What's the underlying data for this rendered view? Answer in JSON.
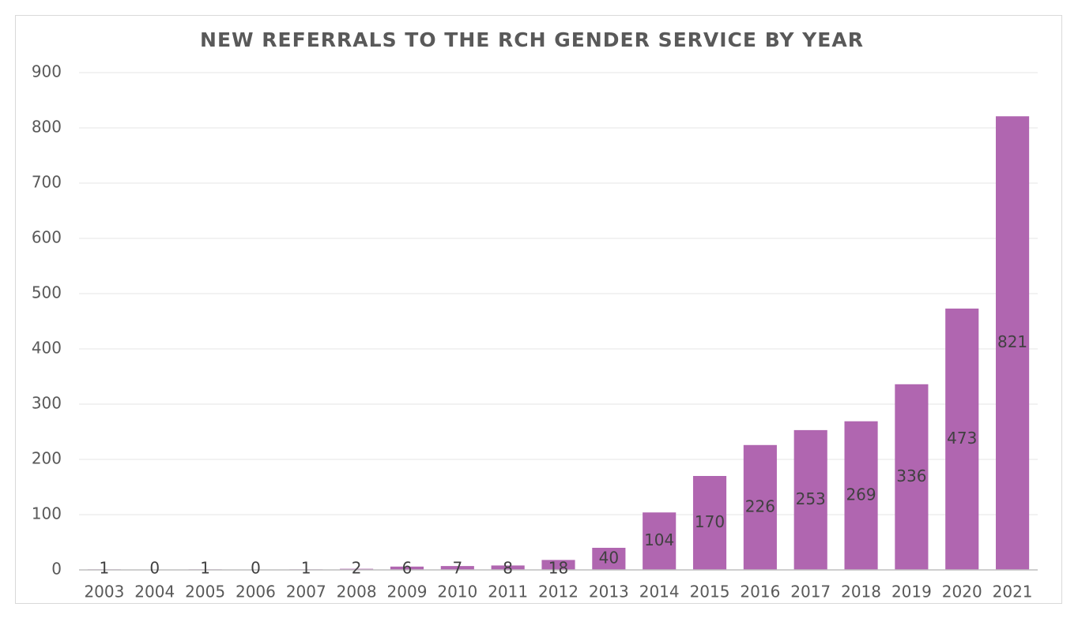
{
  "chart_data": {
    "type": "bar",
    "title": "NEW REFERRALS TO THE RCH GENDER SERVICE BY YEAR",
    "xlabel": "",
    "ylabel": "",
    "categories": [
      "2003",
      "2004",
      "2005",
      "2006",
      "2007",
      "2008",
      "2009",
      "2010",
      "2011",
      "2012",
      "2013",
      "2014",
      "2015",
      "2016",
      "2017",
      "2018",
      "2019",
      "2020",
      "2021"
    ],
    "values": [
      1,
      0,
      1,
      0,
      1,
      2,
      6,
      7,
      8,
      18,
      40,
      104,
      170,
      226,
      253,
      269,
      336,
      473,
      821
    ],
    "data_labels": [
      "1",
      "0",
      "1",
      "0",
      "1",
      "2",
      "6",
      "7",
      "8",
      "18",
      "40",
      "104",
      "170",
      "226",
      "253",
      "269",
      "336",
      "473",
      "821"
    ],
    "ylim": [
      0,
      900
    ],
    "yticks": [
      0,
      100,
      200,
      300,
      400,
      500,
      600,
      700,
      800,
      900
    ],
    "ytick_labels": [
      "0",
      "100",
      "200",
      "300",
      "400",
      "500",
      "600",
      "700",
      "800",
      "900"
    ],
    "grid": true,
    "legend": "none",
    "colors": {
      "bar": "#b066b0",
      "grid": "#e6e6e6",
      "axis": "#bfbfbf",
      "text": "#595959",
      "label": "#404040"
    }
  }
}
